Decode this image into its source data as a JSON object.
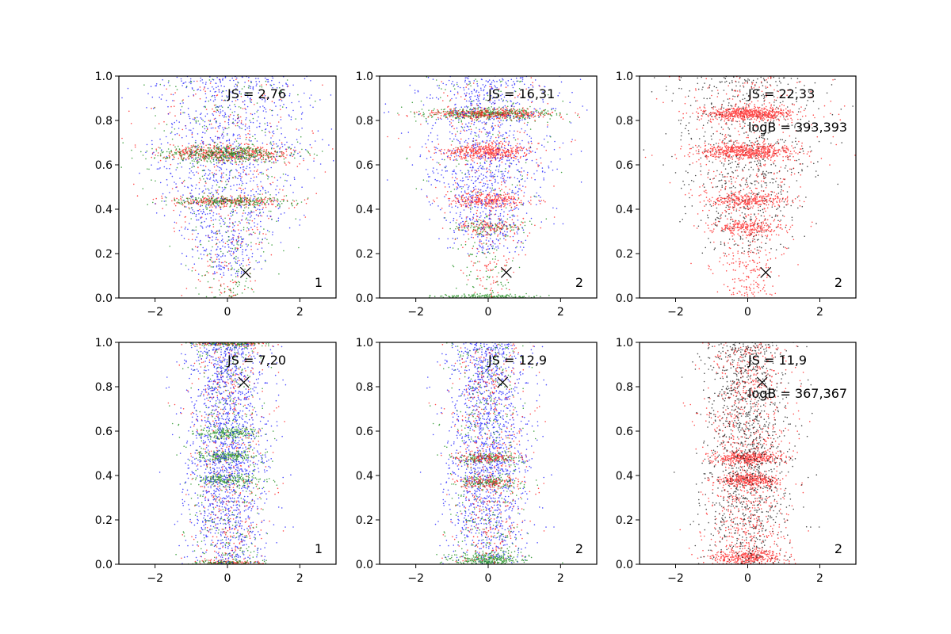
{
  "chart_data": {
    "type": "scatter",
    "layout": "2 rows x 3 columns",
    "shared_axes": {
      "xlim": [
        -3,
        3
      ],
      "ylim": [
        0.0,
        1.0
      ],
      "xticks": [
        -2,
        0,
        2
      ],
      "xtick_labels": [
        "−2",
        "0",
        "2"
      ],
      "yticks": [
        0.0,
        0.2,
        0.4,
        0.6,
        0.8,
        1.0
      ],
      "ytick_labels": [
        "0.0",
        "0.2",
        "0.4",
        "0.6",
        "0.8",
        "1.0"
      ],
      "grid": false,
      "legend": "none"
    },
    "colors": {
      "blue": "#0000ff",
      "red": "#ff0000",
      "green": "#008000",
      "black": "#000000"
    },
    "panels": [
      {
        "id": "r1c1",
        "js_label": "JS = 2,76",
        "logb_label": "",
        "panel_number": "1",
        "marker": {
          "x": 0.5,
          "y": 0.115
        },
        "series_colors": [
          "blue",
          "red",
          "green"
        ],
        "spread_x": 1.0,
        "blue_y_range": [
          0.1,
          1.0
        ],
        "bands": [
          {
            "y": 0.65,
            "x_sd": 1.1,
            "y_sd": 0.018,
            "colors": [
              "red",
              "green"
            ],
            "count": 900
          },
          {
            "y": 0.435,
            "x_sd": 1.0,
            "y_sd": 0.012,
            "colors": [
              "red",
              "green"
            ],
            "count": 500
          }
        ],
        "background_points": 1800
      },
      {
        "id": "r1c2",
        "js_label": "JS = 16,31",
        "logb_label": "",
        "panel_number": "2",
        "marker": {
          "x": 0.5,
          "y": 0.115
        },
        "series_colors": [
          "blue",
          "red",
          "green"
        ],
        "spread_x": 0.85,
        "blue_y_range": [
          0.2,
          1.0
        ],
        "bands": [
          {
            "y": 0.83,
            "x_sd": 1.1,
            "y_sd": 0.012,
            "colors": [
              "green",
              "red"
            ],
            "count": 800
          },
          {
            "y": 0.66,
            "x_sd": 0.7,
            "y_sd": 0.018,
            "colors": [
              "red"
            ],
            "count": 450
          },
          {
            "y": 0.44,
            "x_sd": 0.7,
            "y_sd": 0.016,
            "colors": [
              "red"
            ],
            "count": 300
          },
          {
            "y": 0.32,
            "x_sd": 0.6,
            "y_sd": 0.016,
            "colors": [
              "red",
              "green"
            ],
            "count": 200
          },
          {
            "y": 0.005,
            "x_sd": 0.9,
            "y_sd": 0.006,
            "colors": [
              "green"
            ],
            "count": 200
          }
        ],
        "background_points": 1600
      },
      {
        "id": "r1c3",
        "js_label": "JS = 22,33",
        "logb_label": "logB = 393,393",
        "panel_number": "2",
        "marker": {
          "x": 0.5,
          "y": 0.115
        },
        "series_colors": [
          "black",
          "red"
        ],
        "spread_x": 0.95,
        "blue_y_range": [
          0.2,
          1.0
        ],
        "bands": [
          {
            "y": 0.83,
            "x_sd": 0.8,
            "y_sd": 0.014,
            "colors": [
              "red"
            ],
            "count": 600
          },
          {
            "y": 0.66,
            "x_sd": 0.8,
            "y_sd": 0.018,
            "colors": [
              "red"
            ],
            "count": 600
          },
          {
            "y": 0.44,
            "x_sd": 0.7,
            "y_sd": 0.016,
            "colors": [
              "red"
            ],
            "count": 300
          },
          {
            "y": 0.32,
            "x_sd": 0.6,
            "y_sd": 0.016,
            "colors": [
              "red"
            ],
            "count": 200
          }
        ],
        "background_points": 1400
      },
      {
        "id": "r2c1",
        "js_label": "JS = 7,20",
        "logb_label": "",
        "panel_number": "1",
        "marker": {
          "x": 0.45,
          "y": 0.82
        },
        "series_colors": [
          "blue",
          "red",
          "green"
        ],
        "spread_x": 0.55,
        "blue_y_range": [
          0.0,
          1.0
        ],
        "bands": [
          {
            "y": 0.995,
            "x_sd": 0.6,
            "y_sd": 0.006,
            "colors": [
              "green",
              "red"
            ],
            "count": 250
          },
          {
            "y": 0.59,
            "x_sd": 0.5,
            "y_sd": 0.012,
            "colors": [
              "green"
            ],
            "count": 200
          },
          {
            "y": 0.49,
            "x_sd": 0.55,
            "y_sd": 0.012,
            "colors": [
              "green"
            ],
            "count": 200
          },
          {
            "y": 0.38,
            "x_sd": 0.55,
            "y_sd": 0.012,
            "colors": [
              "green"
            ],
            "count": 200
          },
          {
            "y": 0.005,
            "x_sd": 0.55,
            "y_sd": 0.006,
            "colors": [
              "green",
              "red"
            ],
            "count": 200
          }
        ],
        "background_points": 2400
      },
      {
        "id": "r2c2",
        "js_label": "JS = 12,9",
        "logb_label": "",
        "panel_number": "2",
        "marker": {
          "x": 0.4,
          "y": 0.82
        },
        "series_colors": [
          "blue",
          "red",
          "green"
        ],
        "spread_x": 0.55,
        "blue_y_range": [
          0.0,
          1.0
        ],
        "bands": [
          {
            "y": 0.48,
            "x_sd": 0.55,
            "y_sd": 0.012,
            "colors": [
              "red",
              "green"
            ],
            "count": 250
          },
          {
            "y": 0.37,
            "x_sd": 0.55,
            "y_sd": 0.012,
            "colors": [
              "red",
              "green"
            ],
            "count": 250
          },
          {
            "y": 0.02,
            "x_sd": 0.6,
            "y_sd": 0.015,
            "colors": [
              "green"
            ],
            "count": 300
          }
        ],
        "background_points": 2400
      },
      {
        "id": "r2c3",
        "js_label": "JS = 11,9",
        "logb_label": "logB = 367,367",
        "panel_number": "2",
        "marker": {
          "x": 0.4,
          "y": 0.82
        },
        "series_colors": [
          "black",
          "red"
        ],
        "spread_x": 0.6,
        "blue_y_range": [
          0.0,
          1.0
        ],
        "bands": [
          {
            "y": 0.48,
            "x_sd": 0.6,
            "y_sd": 0.014,
            "colors": [
              "red"
            ],
            "count": 350
          },
          {
            "y": 0.38,
            "x_sd": 0.55,
            "y_sd": 0.014,
            "colors": [
              "red"
            ],
            "count": 350
          },
          {
            "y": 0.03,
            "x_sd": 0.6,
            "y_sd": 0.02,
            "colors": [
              "red"
            ],
            "count": 350
          }
        ],
        "background_points": 2200
      }
    ]
  }
}
